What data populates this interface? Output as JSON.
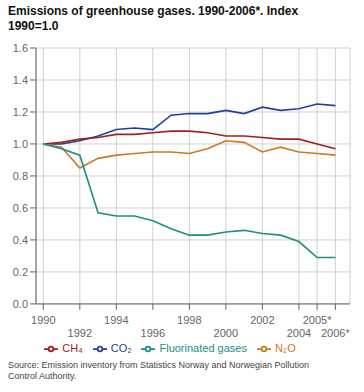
{
  "chart_data": {
    "type": "line",
    "title": "Emissions of greenhouse gases. 1990-2006*. Index\n1990=1.0",
    "source": "Source: Emission inventory from Statistics Norway and Norwegian Pollution\nControl Authority.",
    "x": [
      1990,
      1991,
      1992,
      1993,
      1994,
      1995,
      1996,
      1997,
      1998,
      1999,
      2000,
      2001,
      2002,
      2003,
      2004,
      2005,
      2006
    ],
    "series": [
      {
        "name": "CO₂",
        "color": "#2040a0",
        "values": [
          1.0,
          1.0,
          1.02,
          1.05,
          1.09,
          1.1,
          1.09,
          1.18,
          1.19,
          1.19,
          1.21,
          1.19,
          1.23,
          1.21,
          1.22,
          1.25,
          1.24
        ]
      },
      {
        "name": "CH₄",
        "color": "#a02020",
        "values": [
          1.0,
          1.01,
          1.03,
          1.04,
          1.06,
          1.06,
          1.07,
          1.08,
          1.08,
          1.07,
          1.05,
          1.05,
          1.04,
          1.03,
          1.03,
          1.0,
          0.97
        ]
      },
      {
        "name": "N₂O",
        "color": "#d07820",
        "values": [
          1.0,
          0.98,
          0.85,
          0.91,
          0.93,
          0.94,
          0.95,
          0.95,
          0.94,
          0.97,
          1.02,
          1.01,
          0.95,
          0.98,
          0.95,
          0.94,
          0.93
        ]
      },
      {
        "name": "Fluorinated gases",
        "color": "#1a9080",
        "values": [
          1.0,
          0.97,
          0.93,
          0.57,
          0.55,
          0.55,
          0.52,
          0.47,
          0.43,
          0.43,
          0.45,
          0.46,
          0.44,
          0.43,
          0.39,
          0.29,
          0.29
        ]
      }
    ],
    "xlim": [
      1989.6,
      2006.8
    ],
    "xticks": [
      1990,
      1992,
      1994,
      1996,
      1998,
      2000,
      2002,
      2004,
      {
        "value": 2005,
        "label": "2005*"
      },
      {
        "value": 2006,
        "label": "2006*"
      }
    ],
    "ylim": [
      0,
      1.6
    ],
    "yticks": [
      {
        "value": 0,
        "label": "0.0"
      },
      0.2,
      0.4,
      0.6,
      0.8,
      {
        "value": 1,
        "label": "1.0"
      },
      1.2,
      1.4,
      1.6
    ],
    "grid": true,
    "legend": "bottom"
  }
}
